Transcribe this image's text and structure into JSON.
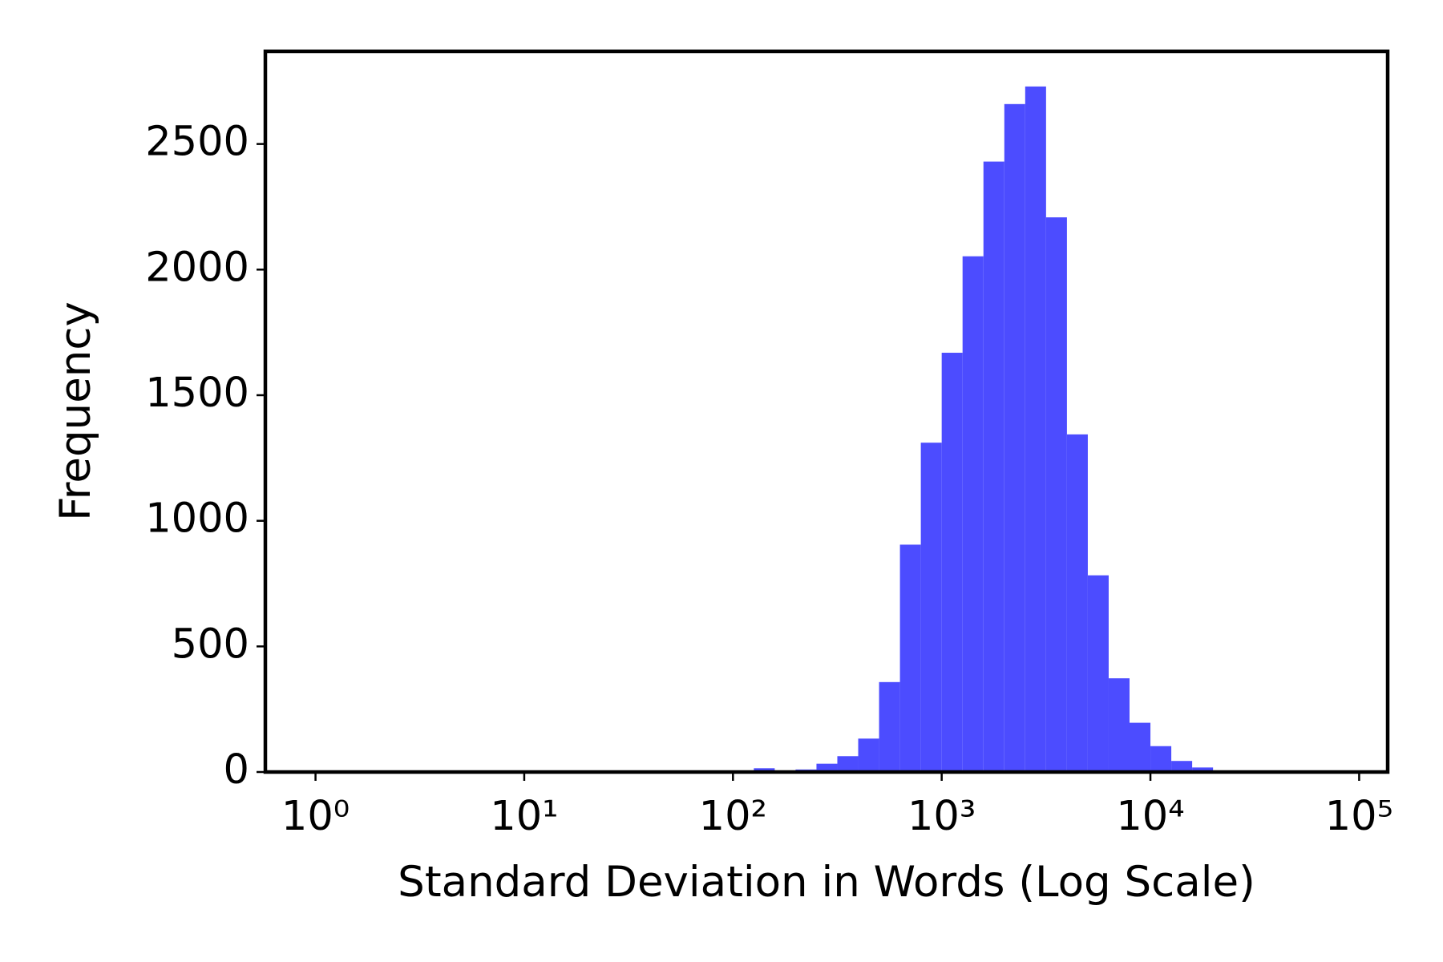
{
  "chart_data": {
    "type": "histogram",
    "x_label": "Standard Deviation in Words (Log Scale)",
    "y_label": "Frequency",
    "color": "#4c4cff",
    "xscale": "log",
    "bins": [
      125.9,
      158.5,
      199.5,
      251.2,
      316.2,
      398.1,
      501.2,
      631.0,
      794.3,
      1000,
      1258.9,
      1584.9,
      1995.3,
      2511.9,
      3162.3,
      3981.1,
      5011.9,
      6309.6,
      7943.3,
      10000,
      12589,
      15849,
      19953
    ],
    "counts": [
      15,
      0,
      10,
      33,
      63,
      133,
      358,
      905,
      1311,
      1669,
      2053,
      2430,
      2659,
      2729,
      2208,
      1344,
      783,
      373,
      196,
      103,
      44,
      18
    ],
    "xlim": [
      0.575,
      137000
    ],
    "ylim": [
      0,
      2869
    ],
    "xticks": [
      {
        "value": 1,
        "label": "10⁰"
      },
      {
        "value": 10,
        "label": "10¹"
      },
      {
        "value": 100,
        "label": "10²"
      },
      {
        "value": 1000,
        "label": "10³"
      },
      {
        "value": 10000,
        "label": "10⁴"
      },
      {
        "value": 100000,
        "label": "10⁵"
      }
    ],
    "yticks": [
      0,
      500,
      1000,
      1500,
      2000,
      2500
    ]
  }
}
